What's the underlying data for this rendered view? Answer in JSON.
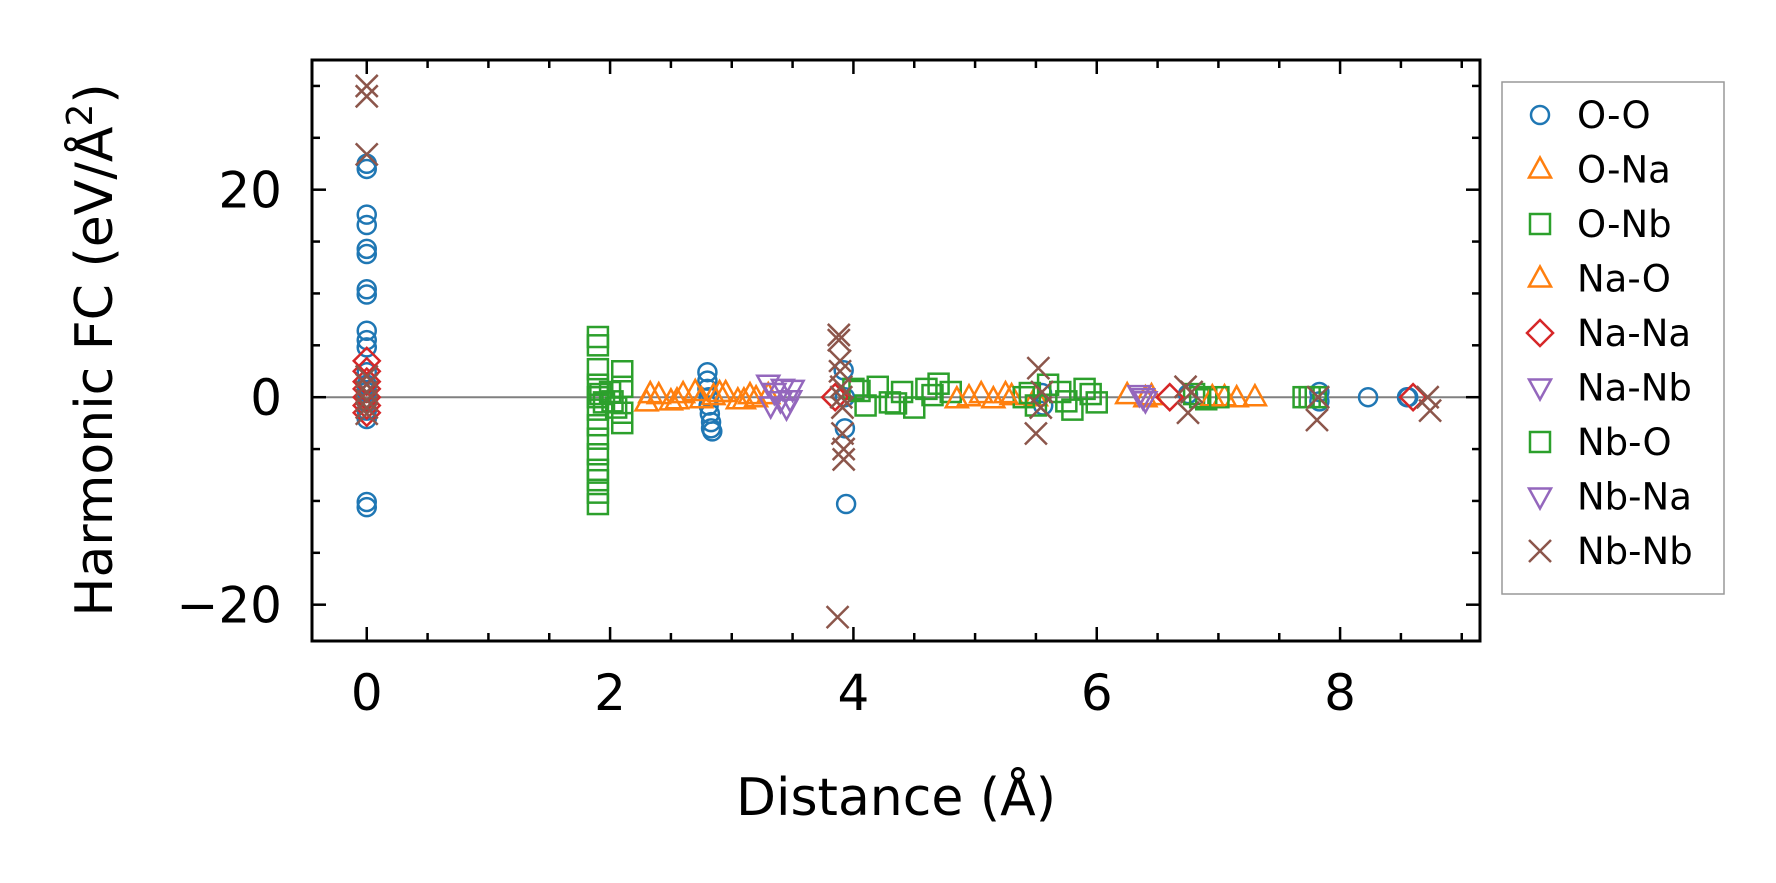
{
  "chart_data": {
    "type": "scatter",
    "title": "",
    "xlabel": "Distance (Å)",
    "ylabel": "Harmonic FC (eV/Å²)",
    "ylabel_main": "Harmonic FC (eV/Å",
    "ylabel_sup": "2",
    "ylabel_tail": ")",
    "xlim": [
      -0.45,
      9.15
    ],
    "ylim": [
      -23.5,
      32.5
    ],
    "xticks": [
      0,
      2,
      4,
      6,
      8
    ],
    "xtick_labels": [
      "0",
      "2",
      "4",
      "6",
      "8"
    ],
    "yticks": [
      -20,
      0,
      20
    ],
    "ytick_labels": [
      "−20",
      "0",
      "20"
    ],
    "x_minor_step": 0.5,
    "y_minor_step": 5,
    "zero_line": true,
    "legend_position": "outside-right",
    "series": [
      {
        "name": "O-O",
        "marker": "circle",
        "color": "#1f77b4",
        "x": [
          0,
          0,
          0,
          0,
          0,
          0,
          0,
          0,
          0,
          0,
          0,
          0,
          0,
          0,
          0,
          0,
          0,
          0,
          0,
          2.8,
          2.8,
          2.8,
          2.81,
          2.81,
          2.82,
          2.83,
          2.83,
          2.84,
          3.92,
          3.93,
          3.93,
          3.94,
          5.55,
          5.56,
          6.75,
          7.83,
          7.83,
          8.23,
          8.55,
          8.56
        ],
        "y": [
          22.5,
          22,
          17.6,
          16.6,
          14.3,
          13.8,
          10.4,
          9.9,
          6.4,
          5.5,
          4.8,
          2.4,
          1.2,
          0.5,
          -0.5,
          -1.3,
          -2.1,
          -10.1,
          -10.6,
          2.4,
          1.6,
          0.8,
          0,
          -0.8,
          -1.6,
          -2.4,
          -3,
          -3.3,
          2.6,
          0,
          -3,
          -10.3,
          0.4,
          -0.8,
          0.3,
          0.5,
          -0.4,
          0,
          0,
          0
        ]
      },
      {
        "name": "O-Na",
        "marker": "triangle-up",
        "color": "#ff7f0e",
        "x": [
          2.3,
          2.4,
          2.5,
          2.6,
          2.7,
          2.75,
          2.85,
          2.95,
          3.05,
          3.15,
          3.2,
          4.95,
          5.05,
          5.15,
          5.3,
          5.5,
          6.25,
          6.4,
          7.05,
          7.15,
          7.3
        ],
        "y": [
          -0.5,
          0.2,
          -0.4,
          0.3,
          0.5,
          -0.2,
          0.1,
          0.4,
          -0.3,
          0.2,
          -0.1,
          0,
          0.3,
          -0.2,
          0.1,
          0,
          0.2,
          -0.1,
          0,
          -0.1,
          0
        ]
      },
      {
        "name": "O-Nb",
        "marker": "square",
        "color": "#2ca02c",
        "x": [
          1.9,
          1.9,
          1.9,
          1.9,
          1.9,
          1.9,
          1.9,
          1.9,
          1.9,
          1.9,
          1.9,
          1.9,
          1.9,
          1.95,
          2.0,
          2.05,
          2.1,
          2.1,
          2.1,
          2.1,
          4.0,
          4.1,
          4.2,
          4.3,
          4.4,
          4.5,
          4.6,
          4.7,
          4.8,
          5.4,
          5.5,
          5.6,
          5.7,
          5.8,
          5.9,
          6.0,
          6.8,
          6.9,
          7.0,
          7.7,
          7.8
        ],
        "y": [
          5.8,
          5,
          2.7,
          1.2,
          0,
          -1.2,
          -2.7,
          -4,
          -5.5,
          -7,
          -8,
          -9.2,
          -10.3,
          -0.5,
          0.5,
          -1,
          2.5,
          1,
          -1.5,
          -2.5,
          0.8,
          -0.8,
          1,
          -0.5,
          0.5,
          -1,
          0.8,
          1.3,
          0.5,
          0,
          -0.8,
          1.2,
          0.5,
          -1.2,
          0.8,
          -0.5,
          0.3,
          -0.2,
          0,
          0,
          0
        ]
      },
      {
        "name": "Na-O",
        "marker": "triangle-up",
        "color": "#ff7f0e",
        "x": [
          2.33,
          2.55,
          2.9,
          3.1,
          3.3,
          4.85,
          5.25,
          6.45,
          6.95
        ],
        "y": [
          0.3,
          -0.3,
          0.4,
          -0.3,
          0.2,
          -0.2,
          0.3,
          0.1,
          0
        ]
      },
      {
        "name": "Na-Na",
        "marker": "diamond",
        "color": "#d62728",
        "x": [
          0,
          0,
          0,
          0,
          0,
          0,
          0,
          3.85,
          6.6,
          8.6
        ],
        "y": [
          3.5,
          2.5,
          1.5,
          0.8,
          0,
          -0.8,
          -1.5,
          0,
          0,
          0
        ]
      },
      {
        "name": "Na-Nb",
        "marker": "triangle-down",
        "color": "#9467bd",
        "x": [
          3.3,
          3.35,
          3.4,
          3.45,
          3.5,
          6.35,
          6.4
        ],
        "y": [
          1.3,
          0.5,
          -0.3,
          -1,
          0.8,
          0.3,
          -0.3
        ]
      },
      {
        "name": "Nb-O",
        "marker": "square",
        "color": "#2ca02c",
        "x": [
          1.92,
          2.02,
          4.05,
          4.35,
          4.65,
          5.45,
          5.75,
          5.95,
          6.85,
          7.75
        ],
        "y": [
          0.3,
          -0.4,
          0.6,
          -0.6,
          0.2,
          0.4,
          -0.4,
          0.3,
          0,
          0
        ]
      },
      {
        "name": "Nb-Na",
        "marker": "triangle-down",
        "color": "#9467bd",
        "x": [
          3.32,
          3.42,
          3.48,
          6.38
        ],
        "y": [
          -0.8,
          0.9,
          -0.2,
          0
        ]
      },
      {
        "name": "Nb-Nb",
        "marker": "cross",
        "color": "#8c564b",
        "x": [
          0,
          0,
          0,
          0,
          0,
          0,
          0,
          0,
          0,
          3.88,
          3.88,
          3.89,
          3.89,
          3.9,
          3.9,
          3.91,
          3.91,
          3.92,
          3.92,
          3.87,
          5.52,
          5.54,
          5.5,
          5.55,
          6.73,
          6.75,
          6.78,
          7.82,
          7.81,
          8.72,
          8.74
        ],
        "y": [
          30,
          29,
          23.4,
          2,
          1.2,
          0.5,
          -0.3,
          -1,
          -1.6,
          6,
          5.5,
          3.5,
          2.5,
          1,
          0,
          -1,
          -3.5,
          -5,
          -6,
          -21.2,
          2.8,
          -1,
          -3.5,
          0.5,
          1,
          -1.5,
          0.5,
          0,
          -2.2,
          0,
          -1.3
        ]
      }
    ]
  }
}
